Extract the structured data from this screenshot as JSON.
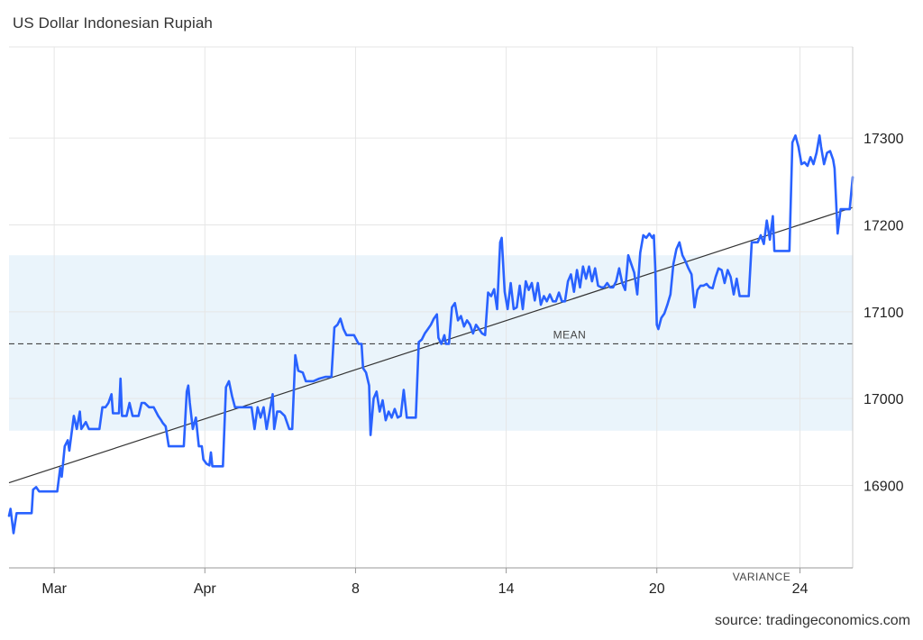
{
  "title": "US Dollar Indonesian Rupiah",
  "source": "source: tradingeconomics.com",
  "colors": {
    "line": "#2962ff",
    "trend": "#333333",
    "band": "#eaf4fb",
    "grid": "#e6e6e6",
    "mean": "#444444"
  },
  "chart_data": {
    "type": "line",
    "title": "US Dollar Indonesian Rupiah",
    "xlabel": "",
    "ylabel": "",
    "ylim": [
      16805,
      17405
    ],
    "x_ticks": [
      {
        "label": "Mar",
        "x": 3
      },
      {
        "label": "Apr",
        "x": 13
      },
      {
        "label": "8",
        "x": 23
      },
      {
        "label": "14",
        "x": 33
      },
      {
        "label": "20",
        "x": 43
      },
      {
        "label": "24",
        "x": 52.5
      }
    ],
    "y_ticks": [
      16900,
      17000,
      17100,
      17200,
      17300
    ],
    "x_range": [
      0,
      56
    ],
    "grid": true,
    "annotations": {
      "mean": {
        "label": "MEAN",
        "value": 17063
      },
      "variance": {
        "label": "VARIANCE",
        "band": [
          16963,
          17165
        ]
      }
    },
    "trend_line": {
      "start": [
        0,
        16903
      ],
      "end": [
        56,
        17220
      ]
    },
    "series": [
      {
        "values": [
          [
            0.0,
            16865
          ],
          [
            0.1,
            16873
          ],
          [
            0.3,
            16845
          ],
          [
            0.5,
            16868
          ],
          [
            1.0,
            16868
          ],
          [
            1.5,
            16868
          ],
          [
            1.6,
            16895
          ],
          [
            1.8,
            16898
          ],
          [
            2.0,
            16893
          ],
          [
            2.3,
            16893
          ],
          [
            3.2,
            16893
          ],
          [
            3.4,
            16920
          ],
          [
            3.5,
            16910
          ],
          [
            3.7,
            16945
          ],
          [
            3.9,
            16952
          ],
          [
            4.0,
            16940
          ],
          [
            4.3,
            16980
          ],
          [
            4.5,
            16965
          ],
          [
            4.7,
            16985
          ],
          [
            4.8,
            16965
          ],
          [
            5.1,
            16973
          ],
          [
            5.3,
            16965
          ],
          [
            6.0,
            16965
          ],
          [
            6.2,
            16990
          ],
          [
            6.4,
            16990
          ],
          [
            6.6,
            16995
          ],
          [
            6.8,
            17005
          ],
          [
            6.9,
            16983
          ],
          [
            7.1,
            16983
          ],
          [
            7.3,
            16983
          ],
          [
            7.4,
            17023
          ],
          [
            7.5,
            16980
          ],
          [
            7.8,
            16980
          ],
          [
            8.0,
            16995
          ],
          [
            8.2,
            16980
          ],
          [
            8.6,
            16980
          ],
          [
            8.8,
            16995
          ],
          [
            9.0,
            16995
          ],
          [
            9.3,
            16990
          ],
          [
            9.6,
            16990
          ],
          [
            9.9,
            16980
          ],
          [
            10.1,
            16975
          ],
          [
            10.2,
            16972
          ],
          [
            10.4,
            16968
          ],
          [
            10.6,
            16945
          ],
          [
            11.2,
            16945
          ],
          [
            11.6,
            16945
          ],
          [
            11.8,
            17008
          ],
          [
            11.9,
            17015
          ],
          [
            12.0,
            16995
          ],
          [
            12.2,
            16965
          ],
          [
            12.4,
            16978
          ],
          [
            12.6,
            16945
          ],
          [
            12.8,
            16945
          ],
          [
            12.9,
            16930
          ],
          [
            13.1,
            16925
          ],
          [
            13.3,
            16923
          ],
          [
            13.4,
            16938
          ],
          [
            13.5,
            16922
          ],
          [
            13.8,
            16922
          ],
          [
            14.2,
            16922
          ],
          [
            14.4,
            17013
          ],
          [
            14.6,
            17020
          ],
          [
            14.8,
            17003
          ],
          [
            15.0,
            16990
          ],
          [
            15.2,
            16990
          ],
          [
            15.5,
            16990
          ],
          [
            15.8,
            16990
          ],
          [
            16.1,
            16990
          ],
          [
            16.3,
            16965
          ],
          [
            16.5,
            16990
          ],
          [
            16.7,
            16978
          ],
          [
            16.9,
            16990
          ],
          [
            17.1,
            16965
          ],
          [
            17.3,
            16985
          ],
          [
            17.5,
            17005
          ],
          [
            17.6,
            16965
          ],
          [
            17.8,
            16985
          ],
          [
            18.0,
            16985
          ],
          [
            18.3,
            16980
          ],
          [
            18.6,
            16965
          ],
          [
            18.8,
            16965
          ],
          [
            19.0,
            17050
          ],
          [
            19.2,
            17032
          ],
          [
            19.5,
            17030
          ],
          [
            19.7,
            17020
          ],
          [
            19.9,
            17020
          ],
          [
            20.2,
            17020
          ],
          [
            20.6,
            17023
          ],
          [
            21.0,
            17025
          ],
          [
            21.4,
            17025
          ],
          [
            21.6,
            17082
          ],
          [
            21.8,
            17085
          ],
          [
            22.0,
            17092
          ],
          [
            22.2,
            17080
          ],
          [
            22.4,
            17073
          ],
          [
            22.6,
            17073
          ],
          [
            22.9,
            17073
          ],
          [
            23.2,
            17063
          ],
          [
            23.4,
            17063
          ],
          [
            23.5,
            17035
          ],
          [
            23.7,
            17030
          ],
          [
            23.9,
            17015
          ],
          [
            24.0,
            16958
          ],
          [
            24.2,
            17000
          ],
          [
            24.4,
            17008
          ],
          [
            24.6,
            16985
          ],
          [
            24.8,
            16998
          ],
          [
            25.0,
            16975
          ],
          [
            25.2,
            16985
          ],
          [
            25.4,
            16978
          ],
          [
            25.6,
            16988
          ],
          [
            25.8,
            16978
          ],
          [
            26.0,
            16980
          ],
          [
            26.2,
            17010
          ],
          [
            26.4,
            16978
          ],
          [
            26.6,
            16978
          ],
          [
            26.8,
            16978
          ],
          [
            27.0,
            16978
          ],
          [
            27.2,
            17065
          ],
          [
            27.4,
            17068
          ],
          [
            27.6,
            17075
          ],
          [
            27.8,
            17080
          ],
          [
            28.0,
            17085
          ],
          [
            28.2,
            17092
          ],
          [
            28.4,
            17097
          ],
          [
            28.5,
            17070
          ],
          [
            28.7,
            17063
          ],
          [
            28.9,
            17073
          ],
          [
            29.0,
            17063
          ],
          [
            29.2,
            17063
          ],
          [
            29.4,
            17105
          ],
          [
            29.6,
            17110
          ],
          [
            29.8,
            17090
          ],
          [
            30.0,
            17095
          ],
          [
            30.2,
            17083
          ],
          [
            30.4,
            17090
          ],
          [
            30.6,
            17085
          ],
          [
            30.8,
            17075
          ],
          [
            31.0,
            17085
          ],
          [
            31.2,
            17080
          ],
          [
            31.4,
            17075
          ],
          [
            31.6,
            17073
          ],
          [
            31.8,
            17122
          ],
          [
            32.0,
            17118
          ],
          [
            32.2,
            17126
          ],
          [
            32.4,
            17103
          ],
          [
            32.6,
            17180
          ],
          [
            32.7,
            17185
          ],
          [
            32.9,
            17123
          ],
          [
            33.1,
            17103
          ],
          [
            33.3,
            17133
          ],
          [
            33.5,
            17103
          ],
          [
            33.7,
            17105
          ],
          [
            33.9,
            17130
          ],
          [
            34.1,
            17103
          ],
          [
            34.3,
            17135
          ],
          [
            34.5,
            17125
          ],
          [
            34.7,
            17133
          ],
          [
            34.9,
            17113
          ],
          [
            35.1,
            17133
          ],
          [
            35.3,
            17108
          ],
          [
            35.5,
            17118
          ],
          [
            35.7,
            17112
          ],
          [
            35.9,
            17120
          ],
          [
            36.1,
            17112
          ],
          [
            36.3,
            17112
          ],
          [
            36.5,
            17122
          ],
          [
            36.7,
            17112
          ],
          [
            36.9,
            17112
          ],
          [
            37.1,
            17135
          ],
          [
            37.3,
            17143
          ],
          [
            37.5,
            17123
          ],
          [
            37.7,
            17148
          ],
          [
            37.9,
            17128
          ],
          [
            38.1,
            17152
          ],
          [
            38.3,
            17138
          ],
          [
            38.5,
            17152
          ],
          [
            38.7,
            17135
          ],
          [
            38.9,
            17150
          ],
          [
            39.1,
            17130
          ],
          [
            39.3,
            17128
          ],
          [
            39.5,
            17128
          ],
          [
            39.7,
            17133
          ],
          [
            39.9,
            17128
          ],
          [
            40.1,
            17128
          ],
          [
            40.3,
            17135
          ],
          [
            40.5,
            17150
          ],
          [
            40.7,
            17133
          ],
          [
            40.9,
            17125
          ],
          [
            41.1,
            17165
          ],
          [
            41.3,
            17155
          ],
          [
            41.5,
            17145
          ],
          [
            41.7,
            17120
          ],
          [
            41.9,
            17168
          ],
          [
            42.1,
            17188
          ],
          [
            42.3,
            17185
          ],
          [
            42.5,
            17190
          ],
          [
            42.7,
            17185
          ],
          [
            42.8,
            17188
          ],
          [
            42.9,
            17150
          ],
          [
            43.0,
            17085
          ],
          [
            43.1,
            17080
          ],
          [
            43.3,
            17093
          ],
          [
            43.5,
            17098
          ],
          [
            43.7,
            17108
          ],
          [
            43.9,
            17120
          ],
          [
            44.1,
            17155
          ],
          [
            44.3,
            17172
          ],
          [
            44.5,
            17180
          ],
          [
            44.7,
            17165
          ],
          [
            44.9,
            17158
          ],
          [
            45.1,
            17150
          ],
          [
            45.3,
            17143
          ],
          [
            45.5,
            17105
          ],
          [
            45.7,
            17125
          ],
          [
            45.9,
            17130
          ],
          [
            46.1,
            17130
          ],
          [
            46.3,
            17132
          ],
          [
            46.5,
            17128
          ],
          [
            46.7,
            17127
          ],
          [
            46.9,
            17140
          ],
          [
            47.1,
            17150
          ],
          [
            47.3,
            17148
          ],
          [
            47.5,
            17133
          ],
          [
            47.7,
            17148
          ],
          [
            47.9,
            17140
          ],
          [
            48.1,
            17120
          ],
          [
            48.3,
            17138
          ],
          [
            48.5,
            17118
          ],
          [
            48.7,
            17118
          ],
          [
            48.9,
            17118
          ],
          [
            49.1,
            17118
          ],
          [
            49.3,
            17180
          ],
          [
            49.5,
            17180
          ],
          [
            49.7,
            17180
          ],
          [
            49.9,
            17188
          ],
          [
            50.1,
            17178
          ],
          [
            50.3,
            17205
          ],
          [
            50.5,
            17183
          ],
          [
            50.7,
            17210
          ],
          [
            50.8,
            17170
          ],
          [
            51.0,
            17170
          ],
          [
            51.2,
            17170
          ],
          [
            51.4,
            17170
          ],
          [
            51.6,
            17170
          ],
          [
            51.8,
            17170
          ],
          [
            52.0,
            17295
          ],
          [
            52.2,
            17303
          ],
          [
            52.4,
            17290
          ],
          [
            52.6,
            17270
          ],
          [
            52.8,
            17272
          ],
          [
            53.0,
            17268
          ],
          [
            53.2,
            17278
          ],
          [
            53.4,
            17270
          ],
          [
            53.6,
            17283
          ],
          [
            53.8,
            17303
          ],
          [
            53.9,
            17290
          ],
          [
            54.1,
            17270
          ],
          [
            54.3,
            17283
          ],
          [
            54.5,
            17285
          ],
          [
            54.7,
            17275
          ],
          [
            54.8,
            17265
          ],
          [
            55.0,
            17190
          ],
          [
            55.2,
            17218
          ],
          [
            55.4,
            17218
          ],
          [
            55.6,
            17218
          ],
          [
            55.8,
            17218
          ],
          [
            56.0,
            17255
          ]
        ]
      }
    ]
  }
}
